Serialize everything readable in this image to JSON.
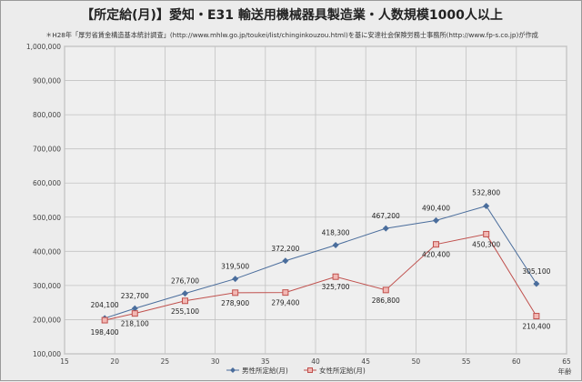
{
  "chart_data": {
    "type": "line",
    "title": "【所定給(月)】愛知・E31 輸送用機械器具製造業・人数規模1000人以上",
    "subtitle": "＊H28年「厚労省賃金構造基本統計調査」(http://www.mhlw.go.jp/toukei/list/chinginkouzou.html)を基に安達社会保険労務士事務所(http://www.fp-s.co.jp)が作成",
    "xlabel": "年齢",
    "ylabel": "",
    "xlim": [
      15,
      65
    ],
    "ylim": [
      100000,
      1000000
    ],
    "xticks": [
      15,
      20,
      25,
      30,
      35,
      40,
      45,
      50,
      55,
      60,
      65
    ],
    "yticks": [
      100000,
      200000,
      300000,
      400000,
      500000,
      600000,
      700000,
      800000,
      900000,
      1000000
    ],
    "ytick_labels": [
      "100,000",
      "200,000",
      "300,000",
      "400,000",
      "500,000",
      "600,000",
      "700,000",
      "800,000",
      "900,000",
      "1,000,000"
    ],
    "grid": true,
    "legend_position": "bottom",
    "series": [
      {
        "name": "男性所定給(月)",
        "color": "#4a6d9c",
        "marker": "diamond",
        "x": [
          19,
          22,
          27,
          32,
          37,
          42,
          47,
          52,
          57,
          62
        ],
        "y": [
          204100,
          232700,
          276700,
          319500,
          372200,
          418300,
          467200,
          490400,
          532800,
          305100
        ],
        "labels": [
          "204,100",
          "232,700",
          "276,700",
          "319,500",
          "372,200",
          "418,300",
          "467,200",
          "490,400",
          "532,800",
          "305,100"
        ]
      },
      {
        "name": "女性所定給(月)",
        "color": "#c0504d",
        "marker": "square",
        "x": [
          19,
          22,
          27,
          32,
          37,
          42,
          47,
          52,
          57,
          62
        ],
        "y": [
          198400,
          218100,
          255100,
          278900,
          279400,
          325700,
          286800,
          420400,
          450300,
          210400
        ],
        "labels": [
          "198,400",
          "218,100",
          "255,100",
          "278,900",
          "279,400",
          "325,700",
          "286,800",
          "420,400",
          "450,300",
          "210,400"
        ]
      }
    ]
  }
}
